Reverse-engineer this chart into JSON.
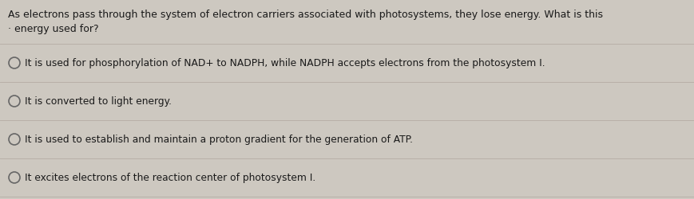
{
  "background_color": "#cdc8c0",
  "question_line1": "As electrons pass through the system of electron carriers associated with photosystems, they lose energy. What is this",
  "question_line2": "· energy used for?",
  "options": [
    "It is used for phosphorylation of NAD+ to NADPH, while NADPH accepts electrons from the photosystem I.",
    "It is converted to light energy.",
    "It is used to establish and maintain a proton gradient for the generation of ATP.",
    "It excites electrons of the reaction center of photosystem I."
  ],
  "text_color": "#1a1a1a",
  "circle_color": "#666666",
  "line_color": "#b8b0a8",
  "font_size_question": 9.0,
  "font_size_options": 8.8,
  "fig_width": 8.69,
  "fig_height": 2.51,
  "dpi": 100
}
